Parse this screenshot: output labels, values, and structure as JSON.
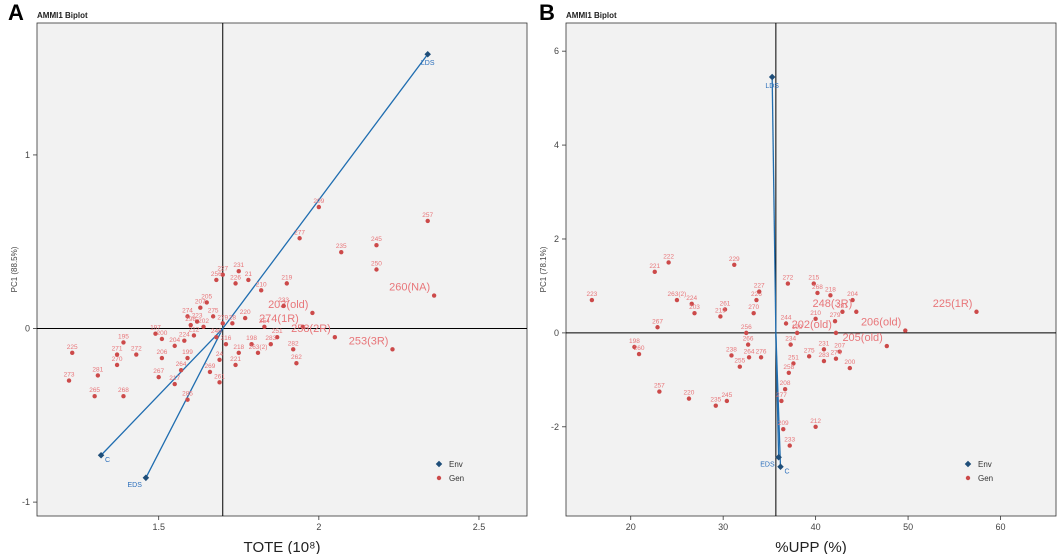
{
  "colors": {
    "panel_bg": "#f2f2f2",
    "gen_point": "#cc4a4a",
    "gen_label": "#e8767a",
    "env_point": "#1f4e79",
    "env_line": "#1f6db0",
    "env_label": "#2a6ebb",
    "axis_line": "#000000"
  },
  "chart_data": [
    {
      "panel_letter": "A",
      "type": "scatter",
      "title": "AMMI1 Biplot",
      "xlabel": "TOTE (10⁸)",
      "ylabel": "PC1 (88.5%)",
      "xlim": [
        1.12,
        2.65
      ],
      "ylim": [
        -1.08,
        1.76
      ],
      "xticks": [
        1.5,
        2.0,
        2.5
      ],
      "yticks": [
        -1,
        0,
        1
      ],
      "ref_x": 1.7,
      "ref_y": 0,
      "legend": [
        "Env",
        "Gen"
      ],
      "environments": [
        {
          "name": "LDS",
          "x": 2.34,
          "y": 1.58
        },
        {
          "name": "C",
          "x": 1.32,
          "y": -0.73
        },
        {
          "name": "EDS",
          "x": 1.46,
          "y": -0.86
        }
      ],
      "genotypes": [
        {
          "name": "209",
          "x": 2.0,
          "y": 0.7
        },
        {
          "name": "257",
          "x": 2.34,
          "y": 0.62
        },
        {
          "name": "277",
          "x": 1.94,
          "y": 0.52
        },
        {
          "name": "235",
          "x": 2.07,
          "y": 0.44
        },
        {
          "name": "245",
          "x": 2.18,
          "y": 0.48
        },
        {
          "name": "250",
          "x": 2.18,
          "y": 0.34
        },
        {
          "name": "219",
          "x": 1.9,
          "y": 0.26
        },
        {
          "name": "227",
          "x": 1.7,
          "y": 0.31
        },
        {
          "name": "231",
          "x": 1.75,
          "y": 0.33
        },
        {
          "name": "256",
          "x": 1.68,
          "y": 0.28
        },
        {
          "name": "226",
          "x": 1.74,
          "y": 0.26
        },
        {
          "name": "21",
          "x": 1.78,
          "y": 0.28
        },
        {
          "name": "210",
          "x": 1.82,
          "y": 0.22
        },
        {
          "name": "260(NA)",
          "x": 2.36,
          "y": 0.19,
          "big": true
        },
        {
          "name": "203(old)",
          "x": 1.98,
          "y": 0.09,
          "big": true
        },
        {
          "name": "233",
          "x": 1.89,
          "y": 0.13
        },
        {
          "name": "274(1R)",
          "x": 1.95,
          "y": 0.01,
          "big": true
        },
        {
          "name": "258(2R)",
          "x": 2.05,
          "y": -0.05,
          "big": true
        },
        {
          "name": "253(3R)",
          "x": 2.23,
          "y": -0.12,
          "big": true
        },
        {
          "name": "274",
          "x": 1.59,
          "y": 0.07
        },
        {
          "name": "207",
          "x": 1.63,
          "y": 0.12
        },
        {
          "name": "205",
          "x": 1.65,
          "y": 0.15
        },
        {
          "name": "275",
          "x": 1.67,
          "y": 0.07
        },
        {
          "name": "223",
          "x": 1.62,
          "y": 0.04
        },
        {
          "name": "298",
          "x": 1.6,
          "y": 0.02
        },
        {
          "name": "202",
          "x": 1.64,
          "y": 0.01
        },
        {
          "name": "279",
          "x": 1.7,
          "y": 0.03
        },
        {
          "name": "220",
          "x": 1.77,
          "y": 0.06
        },
        {
          "name": "28",
          "x": 1.73,
          "y": 0.03
        },
        {
          "name": "254",
          "x": 1.83,
          "y": 0.01
        },
        {
          "name": "197",
          "x": 1.49,
          "y": -0.03
        },
        {
          "name": "200",
          "x": 1.51,
          "y": -0.06
        },
        {
          "name": "195",
          "x": 1.39,
          "y": -0.08
        },
        {
          "name": "204",
          "x": 1.55,
          "y": -0.1
        },
        {
          "name": "212",
          "x": 1.61,
          "y": -0.04
        },
        {
          "name": "224",
          "x": 1.58,
          "y": -0.07
        },
        {
          "name": "246",
          "x": 1.68,
          "y": -0.05
        },
        {
          "name": "216",
          "x": 1.71,
          "y": -0.09
        },
        {
          "name": "198",
          "x": 1.79,
          "y": -0.09
        },
        {
          "name": "251",
          "x": 1.87,
          "y": -0.05
        },
        {
          "name": "283",
          "x": 1.85,
          "y": -0.09
        },
        {
          "name": "263(2)",
          "x": 1.81,
          "y": -0.14
        },
        {
          "name": "282",
          "x": 1.92,
          "y": -0.12
        },
        {
          "name": "262",
          "x": 1.93,
          "y": -0.2
        },
        {
          "name": "218",
          "x": 1.75,
          "y": -0.14
        },
        {
          "name": "221",
          "x": 1.74,
          "y": -0.21
        },
        {
          "name": "225",
          "x": 1.23,
          "y": -0.14
        },
        {
          "name": "271",
          "x": 1.37,
          "y": -0.15
        },
        {
          "name": "272",
          "x": 1.43,
          "y": -0.15
        },
        {
          "name": "206",
          "x": 1.51,
          "y": -0.17
        },
        {
          "name": "199",
          "x": 1.59,
          "y": -0.17
        },
        {
          "name": "270",
          "x": 1.37,
          "y": -0.21
        },
        {
          "name": "264",
          "x": 1.57,
          "y": -0.24
        },
        {
          "name": "269",
          "x": 1.66,
          "y": -0.25
        },
        {
          "name": "24",
          "x": 1.69,
          "y": -0.18
        },
        {
          "name": "273",
          "x": 1.22,
          "y": -0.3
        },
        {
          "name": "281",
          "x": 1.31,
          "y": -0.27
        },
        {
          "name": "267",
          "x": 1.5,
          "y": -0.28
        },
        {
          "name": "217",
          "x": 1.55,
          "y": -0.32
        },
        {
          "name": "261",
          "x": 1.69,
          "y": -0.31
        },
        {
          "name": "265",
          "x": 1.3,
          "y": -0.39
        },
        {
          "name": "268",
          "x": 1.39,
          "y": -0.39
        },
        {
          "name": "285",
          "x": 1.59,
          "y": -0.41
        }
      ]
    },
    {
      "panel_letter": "B",
      "type": "scatter",
      "title": "AMMI1 Biplot",
      "xlabel": "%UPP (%)",
      "ylabel": "PC1 (78.1%)",
      "xlim": [
        13,
        66
      ],
      "ylim": [
        -3.9,
        6.6
      ],
      "xticks": [
        20,
        30,
        40,
        50,
        60
      ],
      "yticks": [
        -2,
        0,
        2,
        4,
        6
      ],
      "ref_x": 35.7,
      "ref_y": 0,
      "legend": [
        "Env",
        "Gen"
      ],
      "environments": [
        {
          "name": "LDS",
          "x": 35.3,
          "y": 5.45
        },
        {
          "name": "EDS",
          "x": 36.0,
          "y": -2.65
        },
        {
          "name": "C",
          "x": 36.2,
          "y": -2.85
        }
      ],
      "genotypes": [
        {
          "name": "223",
          "x": 15.8,
          "y": 0.7
        },
        {
          "name": "221",
          "x": 22.6,
          "y": 1.3
        },
        {
          "name": "222",
          "x": 24.1,
          "y": 1.5
        },
        {
          "name": "229",
          "x": 31.2,
          "y": 1.45
        },
        {
          "name": "263(2)",
          "x": 25.0,
          "y": 0.7
        },
        {
          "name": "224",
          "x": 26.6,
          "y": 0.62
        },
        {
          "name": "203",
          "x": 26.9,
          "y": 0.42
        },
        {
          "name": "267",
          "x": 22.9,
          "y": 0.12
        },
        {
          "name": "198",
          "x": 20.4,
          "y": -0.3
        },
        {
          "name": "260",
          "x": 20.9,
          "y": -0.45
        },
        {
          "name": "261",
          "x": 30.2,
          "y": 0.5
        },
        {
          "name": "219",
          "x": 29.7,
          "y": 0.35
        },
        {
          "name": "226",
          "x": 33.6,
          "y": 0.7
        },
        {
          "name": "227",
          "x": 33.9,
          "y": 0.88
        },
        {
          "name": "270",
          "x": 33.3,
          "y": 0.42
        },
        {
          "name": "256",
          "x": 32.5,
          "y": 0.0
        },
        {
          "name": "266",
          "x": 32.7,
          "y": -0.25
        },
        {
          "name": "238",
          "x": 30.9,
          "y": -0.48
        },
        {
          "name": "255",
          "x": 31.8,
          "y": -0.72
        },
        {
          "name": "264",
          "x": 32.8,
          "y": -0.52
        },
        {
          "name": "276",
          "x": 34.1,
          "y": -0.52
        },
        {
          "name": "272",
          "x": 37.0,
          "y": 1.05
        },
        {
          "name": "215",
          "x": 39.8,
          "y": 1.05
        },
        {
          "name": "268",
          "x": 40.2,
          "y": 0.85
        },
        {
          "name": "218",
          "x": 41.6,
          "y": 0.8
        },
        {
          "name": "204",
          "x": 44.0,
          "y": 0.7
        },
        {
          "name": "281",
          "x": 42.9,
          "y": 0.45
        },
        {
          "name": "279",
          "x": 42.1,
          "y": 0.25
        },
        {
          "name": "210",
          "x": 40.0,
          "y": 0.3
        },
        {
          "name": "212",
          "x": 40.0,
          "y": -2.0
        },
        {
          "name": "244",
          "x": 36.8,
          "y": 0.2
        },
        {
          "name": "199",
          "x": 38.0,
          "y": 0.0
        },
        {
          "name": "234",
          "x": 37.3,
          "y": -0.25
        },
        {
          "name": "231",
          "x": 40.9,
          "y": -0.35
        },
        {
          "name": "207",
          "x": 42.6,
          "y": -0.4
        },
        {
          "name": "274",
          "x": 42.2,
          "y": -0.55
        },
        {
          "name": "200",
          "x": 43.7,
          "y": -0.75
        },
        {
          "name": "283",
          "x": 40.9,
          "y": -0.6
        },
        {
          "name": "275",
          "x": 39.3,
          "y": -0.5
        },
        {
          "name": "251",
          "x": 37.6,
          "y": -0.65
        },
        {
          "name": "258",
          "x": 37.1,
          "y": -0.85
        },
        {
          "name": "208",
          "x": 36.7,
          "y": -1.2
        },
        {
          "name": "277",
          "x": 36.3,
          "y": -1.45
        },
        {
          "name": "209",
          "x": 36.5,
          "y": -2.05
        },
        {
          "name": "233",
          "x": 37.2,
          "y": -2.4
        },
        {
          "name": "257",
          "x": 23.1,
          "y": -1.25
        },
        {
          "name": "220",
          "x": 26.3,
          "y": -1.4
        },
        {
          "name": "235",
          "x": 29.2,
          "y": -1.55
        },
        {
          "name": "245",
          "x": 30.4,
          "y": -1.45
        },
        {
          "name": "248(3R)",
          "x": 44.4,
          "y": 0.45,
          "big": true
        },
        {
          "name": "202(old)",
          "x": 42.2,
          "y": 0.0,
          "big": true
        },
        {
          "name": "206(old)",
          "x": 49.7,
          "y": 0.05,
          "big": true
        },
        {
          "name": "205(old)",
          "x": 47.7,
          "y": -0.28,
          "big": true
        },
        {
          "name": "225(1R)",
          "x": 57.4,
          "y": 0.45,
          "big": true
        }
      ]
    }
  ]
}
